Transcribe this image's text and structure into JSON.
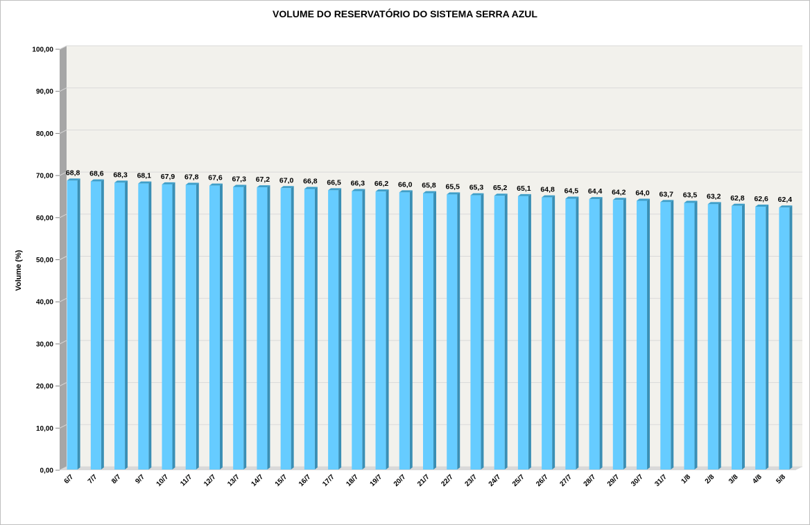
{
  "chart_data": {
    "type": "bar",
    "title": "VOLUME DO RESERVATÓRIO DO SISTEMA SERRA AZUL",
    "ylabel": "Volume (%)",
    "xlabel": "",
    "ylim": [
      0,
      100
    ],
    "yticks": [
      "0,00",
      "10,00",
      "20,00",
      "30,00",
      "40,00",
      "50,00",
      "60,00",
      "70,00",
      "80,00",
      "90,00",
      "100,00"
    ],
    "grid": true,
    "legend": "none",
    "categories": [
      "6/7",
      "7/7",
      "8/7",
      "9/7",
      "10/7",
      "11/7",
      "12/7",
      "13/7",
      "14/7",
      "15/7",
      "16/7",
      "17/7",
      "18/7",
      "19/7",
      "20/7",
      "21/7",
      "22/7",
      "23/7",
      "24/7",
      "25/7",
      "26/7",
      "27/7",
      "28/7",
      "29/7",
      "30/7",
      "31/7",
      "1/8",
      "2/8",
      "3/8",
      "4/8",
      "5/8"
    ],
    "values": [
      68.8,
      68.6,
      68.3,
      68.1,
      67.9,
      67.8,
      67.6,
      67.3,
      67.2,
      67.0,
      66.8,
      66.5,
      66.3,
      66.2,
      66.0,
      65.8,
      65.5,
      65.3,
      65.2,
      65.1,
      64.8,
      64.5,
      64.4,
      64.2,
      64.0,
      63.7,
      63.5,
      63.2,
      62.8,
      62.6,
      62.4
    ],
    "value_labels": [
      "68,8",
      "68,6",
      "68,3",
      "68,1",
      "67,9",
      "67,8",
      "67,6",
      "67,3",
      "67,2",
      "67,0",
      "66,8",
      "66,5",
      "66,3",
      "66,2",
      "66,0",
      "65,8",
      "65,5",
      "65,3",
      "65,2",
      "65,1",
      "64,8",
      "64,5",
      "64,4",
      "64,2",
      "64,0",
      "63,7",
      "63,5",
      "63,2",
      "62,8",
      "62,6",
      "62,4"
    ],
    "colors": {
      "bar_front": "#66ccff",
      "bar_side": "#3a8fb5",
      "bar_top": "#3f9fc9",
      "wall": "#f2f1ec",
      "wall_side": "#a6a6a6",
      "floor": "#d9d9d9",
      "gridline": "#d9d9d9"
    }
  }
}
